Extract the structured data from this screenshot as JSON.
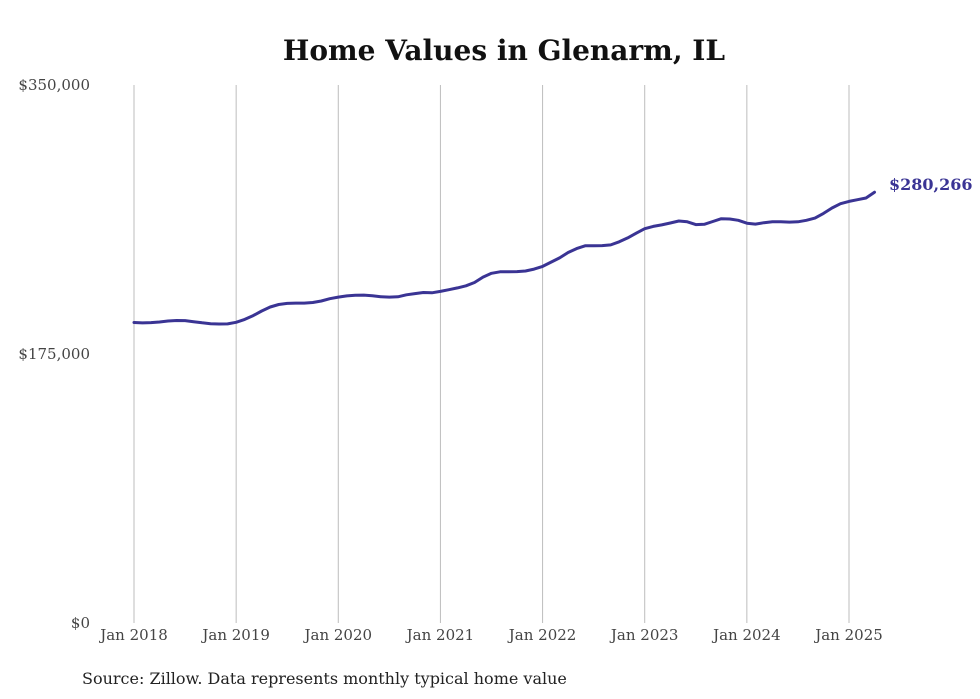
{
  "chart_data": {
    "type": "line",
    "title": "Home Values in Glenarm, IL",
    "xlabel": "",
    "ylabel": "",
    "grid": "vertical",
    "ylim": [
      0,
      350000
    ],
    "yticks": [
      0,
      175000,
      350000
    ],
    "ytick_labels": [
      "$0",
      "$175,000",
      "$350,000"
    ],
    "xticks": [
      2018,
      2019,
      2020,
      2021,
      2022,
      2023,
      2024,
      2025
    ],
    "xtick_labels": [
      "Jan 2018",
      "Jan 2019",
      "Jan 2020",
      "Jan 2021",
      "Jan 2022",
      "Jan 2023",
      "Jan 2024",
      "Jan 2025"
    ],
    "xlim": [
      "2018-01",
      "2025-04"
    ],
    "line_color": "#3a3494",
    "end_label": "$280,266",
    "source": "Source: Zillow. Data represents monthly typical home value",
    "series": [
      {
        "x": [
          "2018-01",
          "2018-02",
          "2018-03",
          "2018-04",
          "2018-05",
          "2018-06",
          "2018-07",
          "2018-08",
          "2018-09",
          "2018-10",
          "2018-11",
          "2018-12",
          "2019-01",
          "2019-02",
          "2019-03",
          "2019-04",
          "2019-05",
          "2019-06",
          "2019-07",
          "2019-08",
          "2019-09",
          "2019-10",
          "2019-11",
          "2019-12",
          "2020-01",
          "2020-02",
          "2020-03",
          "2020-04",
          "2020-05",
          "2020-06",
          "2020-07",
          "2020-08",
          "2020-09",
          "2020-10",
          "2020-11",
          "2020-12",
          "2021-01",
          "2021-02",
          "2021-03",
          "2021-04",
          "2021-05",
          "2021-06",
          "2021-07",
          "2021-08",
          "2021-09",
          "2021-10",
          "2021-11",
          "2021-12",
          "2022-01",
          "2022-02",
          "2022-03",
          "2022-04",
          "2022-05",
          "2022-06",
          "2022-07",
          "2022-08",
          "2022-09",
          "2022-10",
          "2022-11",
          "2022-12",
          "2023-01",
          "2023-02",
          "2023-03",
          "2023-04",
          "2023-05",
          "2023-06",
          "2023-07",
          "2023-08",
          "2023-09",
          "2023-10",
          "2023-11",
          "2023-12",
          "2024-01",
          "2024-02",
          "2024-03",
          "2024-04",
          "2024-05",
          "2024-06",
          "2024-07",
          "2024-08",
          "2024-09",
          "2024-10",
          "2024-11",
          "2024-12",
          "2025-01",
          "2025-02",
          "2025-03",
          "2025-04"
        ],
        "values": [
          195500,
          195200,
          195400,
          195800,
          196500,
          196800,
          196700,
          196000,
          195300,
          194700,
          194500,
          194600,
          195600,
          197500,
          200000,
          203000,
          205600,
          207200,
          207900,
          208100,
          208100,
          208500,
          209500,
          211000,
          212000,
          212800,
          213200,
          213300,
          212900,
          212300,
          212000,
          212200,
          213500,
          214300,
          215000,
          214800,
          215700,
          216800,
          218000,
          219400,
          221500,
          225000,
          227500,
          228500,
          228500,
          228600,
          229000,
          230200,
          232000,
          234800,
          237500,
          241000,
          243600,
          245400,
          245400,
          245500,
          246000,
          248000,
          250500,
          253600,
          256500,
          258000,
          259000,
          260200,
          261500,
          261000,
          259200,
          259400,
          261200,
          263000,
          262800,
          262000,
          260100,
          259500,
          260400,
          261100,
          261100,
          260800,
          261000,
          262000,
          263400,
          266500,
          270000,
          272800,
          274300,
          275400,
          276500,
          280266
        ]
      }
    ]
  }
}
